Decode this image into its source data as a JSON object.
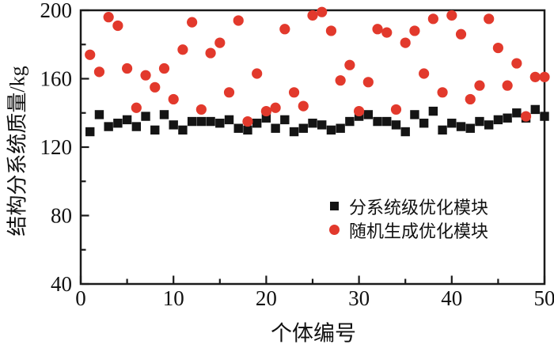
{
  "chart_data": {
    "type": "scatter",
    "title": "",
    "xlabel": "个体编号",
    "ylabel": "结构分系统质量/kg",
    "xlim": [
      0,
      50
    ],
    "ylim": [
      40,
      200
    ],
    "x_major_ticks": [
      0,
      10,
      20,
      30,
      40,
      50
    ],
    "x_minor_ticks": [
      5,
      15,
      25,
      35,
      45
    ],
    "y_major_ticks": [
      40,
      80,
      120,
      160,
      200
    ],
    "y_minor_ticks": [
      60,
      100,
      140,
      180
    ],
    "grid": false,
    "legend_position": "inside-right-middle",
    "frame_color": "#1a1a1a",
    "x": [
      1,
      2,
      3,
      4,
      5,
      6,
      7,
      8,
      9,
      10,
      11,
      12,
      13,
      14,
      15,
      16,
      17,
      18,
      19,
      20,
      21,
      22,
      23,
      24,
      25,
      26,
      27,
      28,
      29,
      30,
      31,
      32,
      33,
      34,
      35,
      36,
      37,
      38,
      39,
      40,
      41,
      42,
      43,
      44,
      45,
      46,
      47,
      48,
      49,
      50
    ],
    "series": [
      {
        "name": "分系统级优化模块",
        "marker": "square",
        "color": "#141414",
        "values": [
          129,
          139,
          132,
          134,
          136,
          132,
          138,
          130,
          139,
          133,
          130,
          135,
          135,
          135,
          134,
          136,
          131,
          130,
          134,
          137,
          131,
          136,
          129,
          131,
          134,
          133,
          130,
          131,
          135,
          138,
          139,
          135,
          135,
          133,
          129,
          139,
          134,
          141,
          130,
          134,
          132,
          131,
          135,
          133,
          136,
          137,
          140,
          137,
          142,
          138
        ]
      },
      {
        "name": "随机生成优化模块",
        "marker": "circle",
        "color": "#e2392c",
        "values": [
          174,
          164,
          196,
          191,
          166,
          143,
          162,
          155,
          166,
          148,
          177,
          193,
          142,
          175,
          181,
          152,
          194,
          135,
          163,
          141,
          143,
          189,
          152,
          144,
          197,
          199,
          188,
          159,
          168,
          141,
          158,
          189,
          187,
          142,
          181,
          188,
          163,
          195,
          152,
          197,
          186,
          148,
          156,
          195,
          178,
          156,
          169,
          138,
          161,
          161
        ]
      }
    ]
  }
}
